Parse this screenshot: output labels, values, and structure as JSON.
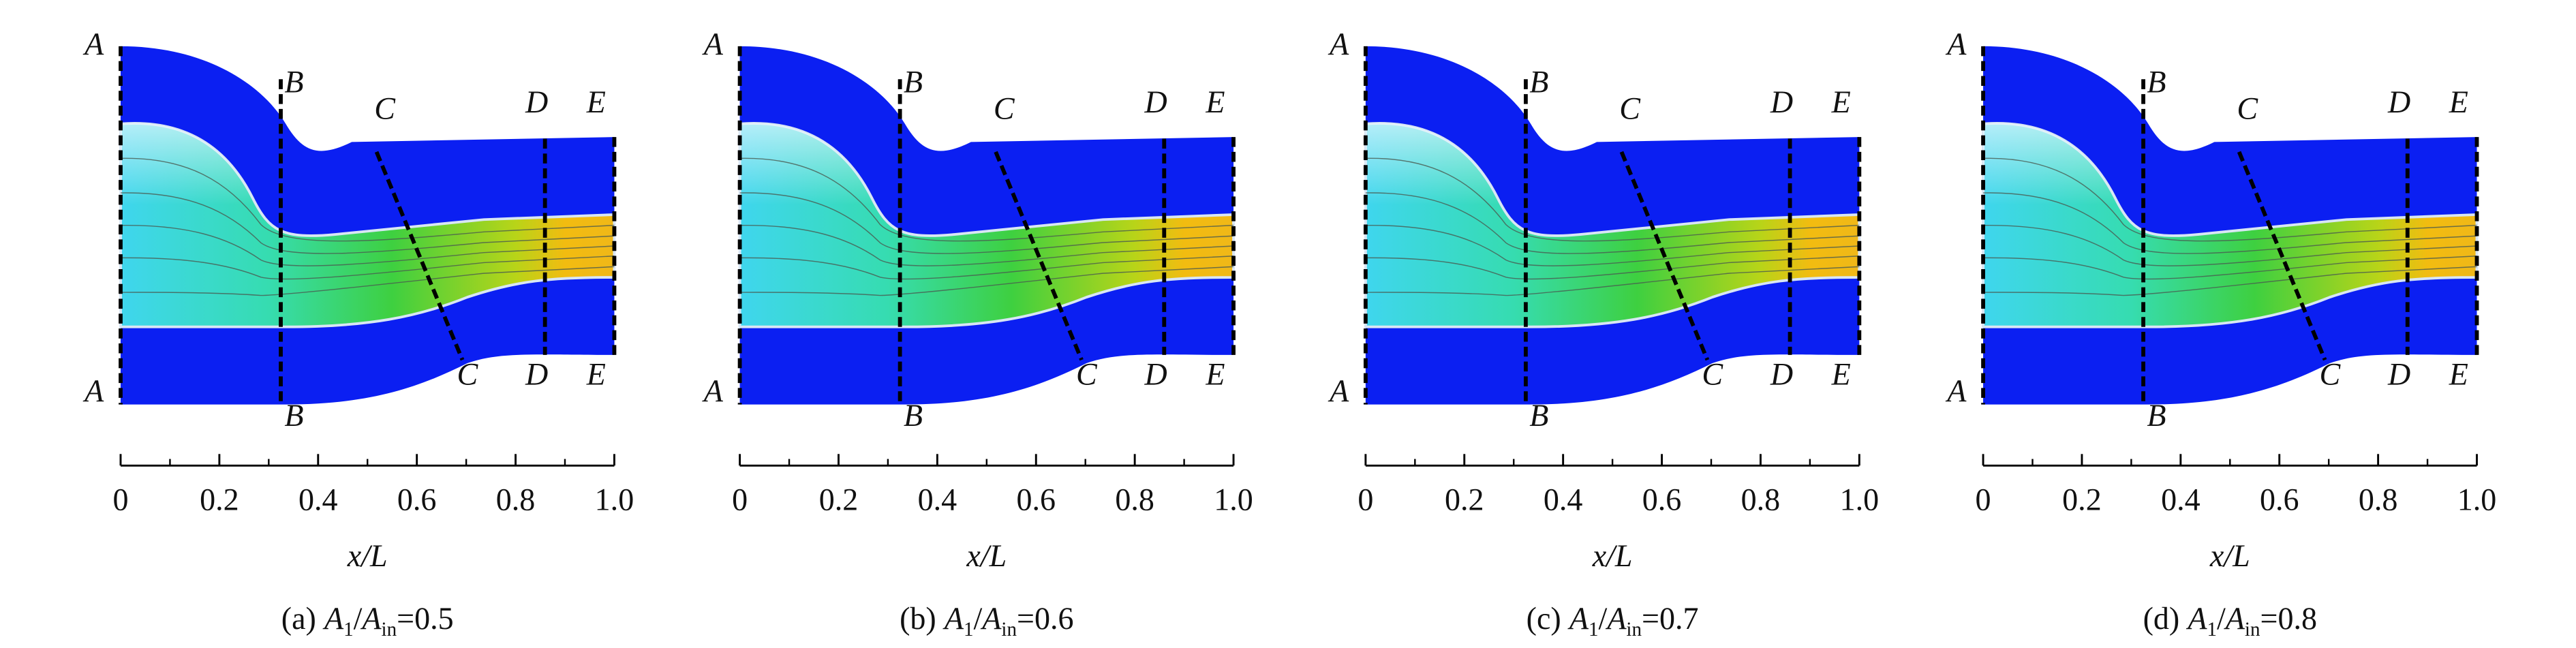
{
  "panels": [
    {
      "sections": [
        "A",
        "B",
        "C",
        "D",
        "E"
      ],
      "xticks": [
        0,
        0.2,
        0.4,
        0.6,
        0.8,
        {
          "value": 1,
          "label": "1.0"
        }
      ],
      "x_label": "x/L",
      "caption": {
        "tag": "(a)",
        "sym": "A",
        "sub1": "1",
        "slash": "/",
        "sub2": "in",
        "eq": "=0.5"
      }
    },
    {
      "sections": [
        "A",
        "B",
        "C",
        "D",
        "E"
      ],
      "xticks": [
        0,
        0.2,
        0.4,
        0.6,
        0.8,
        {
          "value": 1,
          "label": "1.0"
        }
      ],
      "x_label": "x/L",
      "caption": {
        "tag": "(b)",
        "sym": "A",
        "sub1": "1",
        "slash": "/",
        "sub2": "in",
        "eq": "=0.6"
      }
    },
    {
      "sections": [
        "A",
        "B",
        "C",
        "D",
        "E"
      ],
      "xticks": [
        0,
        0.2,
        0.4,
        0.6,
        0.8,
        {
          "value": 1,
          "label": "1.0"
        }
      ],
      "x_label": "x/L",
      "caption": {
        "tag": "(c)",
        "sym": "A",
        "sub1": "1",
        "slash": "/",
        "sub2": "in",
        "eq": "=0.7"
      }
    },
    {
      "sections": [
        "A",
        "B",
        "C",
        "D",
        "E"
      ],
      "xticks": [
        0,
        0.2,
        0.4,
        0.6,
        0.8,
        {
          "value": 1,
          "label": "1.0"
        }
      ],
      "x_label": "x/L",
      "caption": {
        "tag": "(d)",
        "sym": "A",
        "sub1": "1",
        "slash": "/",
        "sub2": "in",
        "eq": "=0.8"
      }
    }
  ]
}
